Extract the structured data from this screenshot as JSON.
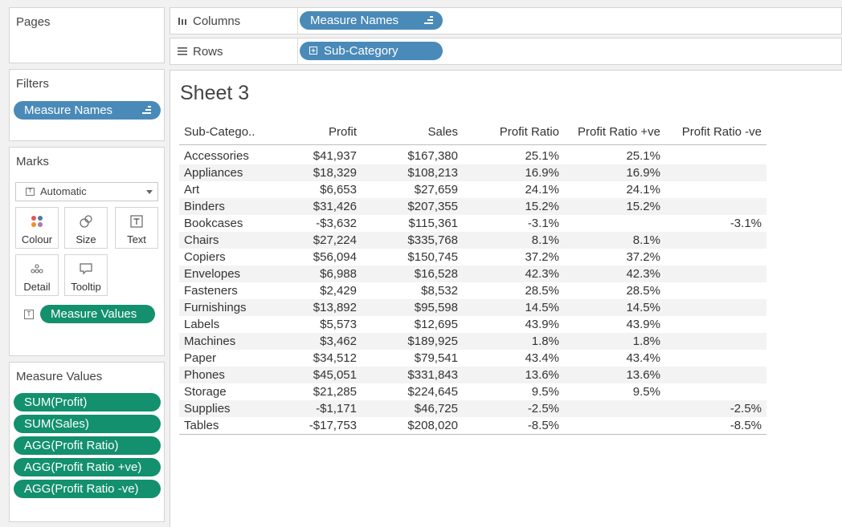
{
  "pages": {
    "title": "Pages"
  },
  "filters": {
    "title": "Filters",
    "pills": [
      "Measure Names"
    ]
  },
  "marks": {
    "title": "Marks",
    "type": "Automatic",
    "buttons": [
      "Colour",
      "Size",
      "Text",
      "Detail",
      "Tooltip"
    ],
    "field": "Measure Values"
  },
  "measure_values_card": {
    "title": "Measure Values",
    "pills": [
      "SUM(Profit)",
      "SUM(Sales)",
      "AGG(Profit Ratio)",
      "AGG(Profit Ratio +ve)",
      "AGG(Profit Ratio -ve)"
    ]
  },
  "columns": {
    "label": "Columns",
    "pill": "Measure Names"
  },
  "rows": {
    "label": "Rows",
    "pill": "Sub-Category"
  },
  "sheet": {
    "title": "Sheet 3"
  },
  "table": {
    "headers": [
      "Sub-Catego..",
      "Profit",
      "Sales",
      "Profit Ratio",
      "Profit Ratio +ve",
      "Profit Ratio -ve"
    ],
    "rows": [
      [
        "Accessories",
        "$41,937",
        "$167,380",
        "25.1%",
        "25.1%",
        ""
      ],
      [
        "Appliances",
        "$18,329",
        "$108,213",
        "16.9%",
        "16.9%",
        ""
      ],
      [
        "Art",
        "$6,653",
        "$27,659",
        "24.1%",
        "24.1%",
        ""
      ],
      [
        "Binders",
        "$31,426",
        "$207,355",
        "15.2%",
        "15.2%",
        ""
      ],
      [
        "Bookcases",
        "-$3,632",
        "$115,361",
        "-3.1%",
        "",
        "-3.1%"
      ],
      [
        "Chairs",
        "$27,224",
        "$335,768",
        "8.1%",
        "8.1%",
        ""
      ],
      [
        "Copiers",
        "$56,094",
        "$150,745",
        "37.2%",
        "37.2%",
        ""
      ],
      [
        "Envelopes",
        "$6,988",
        "$16,528",
        "42.3%",
        "42.3%",
        ""
      ],
      [
        "Fasteners",
        "$2,429",
        "$8,532",
        "28.5%",
        "28.5%",
        ""
      ],
      [
        "Furnishings",
        "$13,892",
        "$95,598",
        "14.5%",
        "14.5%",
        ""
      ],
      [
        "Labels",
        "$5,573",
        "$12,695",
        "43.9%",
        "43.9%",
        ""
      ],
      [
        "Machines",
        "$3,462",
        "$189,925",
        "1.8%",
        "1.8%",
        ""
      ],
      [
        "Paper",
        "$34,512",
        "$79,541",
        "43.4%",
        "43.4%",
        ""
      ],
      [
        "Phones",
        "$45,051",
        "$331,843",
        "13.6%",
        "13.6%",
        ""
      ],
      [
        "Storage",
        "$21,285",
        "$224,645",
        "9.5%",
        "9.5%",
        ""
      ],
      [
        "Supplies",
        "-$1,171",
        "$46,725",
        "-2.5%",
        "",
        "-2.5%"
      ],
      [
        "Tables",
        "-$17,753",
        "$208,020",
        "-8.5%",
        "",
        "-8.5%"
      ]
    ]
  },
  "colors": {
    "dimension_pill": "#4a8ab8",
    "measure_pill": "#13906e"
  }
}
